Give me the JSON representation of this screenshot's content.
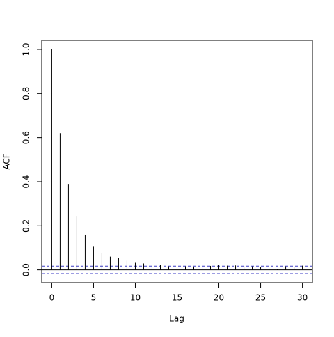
{
  "chart_data": {
    "type": "acf",
    "xlabel": "Lag",
    "ylabel": "ACF",
    "x": [
      0,
      1,
      2,
      3,
      4,
      5,
      6,
      7,
      8,
      9,
      10,
      11,
      12,
      13,
      14,
      15,
      16,
      17,
      18,
      19,
      20,
      21,
      22,
      23,
      24,
      25,
      26,
      27,
      28,
      29,
      30
    ],
    "values": [
      1.0,
      0.62,
      0.39,
      0.245,
      0.16,
      0.105,
      0.077,
      0.06,
      0.055,
      0.042,
      0.032,
      0.029,
      0.025,
      0.022,
      0.016,
      0.013,
      0.016,
      0.015,
      0.016,
      0.018,
      0.022,
      0.019,
      0.02,
      0.018,
      0.016,
      0.012,
      0.006,
      0.004,
      0.016,
      0.013,
      0.019
    ],
    "color": "#000000",
    "ci_lines": [
      0.017,
      -0.017
    ],
    "ci_color": "#3b3bc4",
    "xlim": [
      -1.2,
      31.2
    ],
    "ylim": [
      -0.058,
      1.041
    ],
    "xticks": [
      0,
      5,
      10,
      15,
      20,
      25,
      30
    ],
    "yticks": [
      {
        "value": 0,
        "label": "0.0"
      },
      0.2,
      0.4,
      0.6,
      0.8,
      {
        "value": 1,
        "label": "1.0"
      }
    ]
  }
}
